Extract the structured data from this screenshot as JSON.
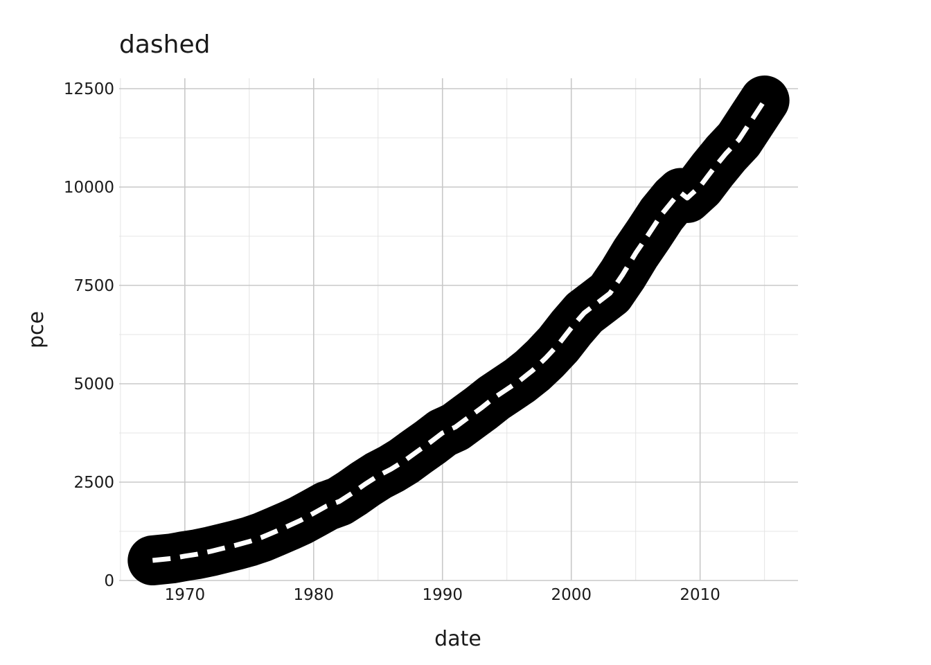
{
  "chart_data": {
    "type": "line",
    "title": "dashed",
    "xlabel": "date",
    "ylabel": "pce",
    "xlim": [
      1964.9,
      1917.6
    ],
    "ylim": [
      0,
      12500
    ],
    "x_ticks": [
      1970,
      1980,
      1990,
      2000,
      2010
    ],
    "y_ticks": [
      0,
      2500,
      5000,
      7500,
      10000,
      12500
    ],
    "x_tick_labels": [
      "1970",
      "1980",
      "1990",
      "2000",
      "2010"
    ],
    "y_tick_labels": [
      "0",
      "2500",
      "5000",
      "7500",
      "10000",
      "12500"
    ],
    "grid": true,
    "legend": "none",
    "colors": {
      "line": "#000000",
      "dash": "#ffffff"
    },
    "series": [
      {
        "x": [
          1967.5,
          1969,
          1970,
          1971,
          1972,
          1973,
          1974,
          1975,
          1976,
          1977,
          1978,
          1979,
          1980,
          1981,
          1982,
          1983,
          1984,
          1985,
          1986,
          1987,
          1988,
          1989,
          1990,
          1991,
          1992,
          1993,
          1994,
          1995,
          1996,
          1997,
          1998,
          1999,
          2000,
          2001,
          2002,
          2003,
          2004,
          2005,
          2006,
          2007,
          2008,
          2008.5,
          2009,
          2010,
          2011,
          2012,
          2013,
          2014,
          2015
        ],
        "values": [
          510,
          560,
          620,
          670,
          740,
          820,
          900,
          990,
          1100,
          1240,
          1380,
          1530,
          1710,
          1890,
          2010,
          2220,
          2450,
          2660,
          2830,
          3030,
          3270,
          3500,
          3750,
          3900,
          4140,
          4380,
          4640,
          4860,
          5080,
          5340,
          5650,
          6000,
          6420,
          6800,
          7050,
          7300,
          7780,
          8320,
          8800,
          9300,
          9700,
          9850,
          9720,
          10020,
          10450,
          10850,
          11200,
          11700,
          12200
        ]
      }
    ]
  }
}
